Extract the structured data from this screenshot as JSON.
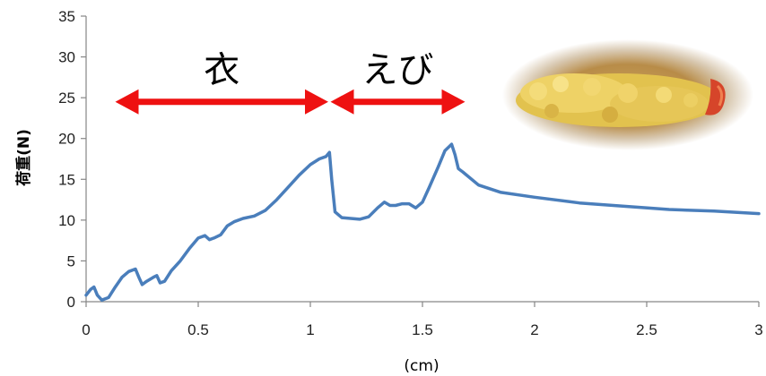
{
  "chart_data": {
    "type": "line",
    "title": "",
    "xlabel": "(cm)",
    "ylabel": "荷重(N)",
    "xlim": [
      0,
      3
    ],
    "ylim": [
      0,
      35
    ],
    "x_ticks": [
      "0",
      "0.5",
      "1",
      "1.5",
      "2",
      "2.5",
      "3"
    ],
    "y_ticks": [
      "0",
      "5",
      "10",
      "15",
      "20",
      "25",
      "30",
      "35"
    ],
    "grid": false,
    "legend": "none",
    "series": [
      {
        "color": "#4a7ebb",
        "x": [
          0,
          0.02,
          0.035,
          0.05,
          0.07,
          0.1,
          0.13,
          0.16,
          0.19,
          0.22,
          0.235,
          0.25,
          0.27,
          0.3,
          0.315,
          0.33,
          0.35,
          0.38,
          0.42,
          0.46,
          0.5,
          0.53,
          0.55,
          0.57,
          0.6,
          0.63,
          0.66,
          0.7,
          0.75,
          0.8,
          0.85,
          0.9,
          0.95,
          1.0,
          1.04,
          1.07,
          1.085,
          1.095,
          1.11,
          1.14,
          1.18,
          1.22,
          1.26,
          1.3,
          1.33,
          1.355,
          1.38,
          1.41,
          1.44,
          1.47,
          1.5,
          1.53,
          1.57,
          1.6,
          1.63,
          1.645,
          1.66,
          1.68,
          1.75,
          1.85,
          2.0,
          2.2,
          2.4,
          2.6,
          2.8,
          3.0
        ],
        "y": [
          0.8,
          1.5,
          1.8,
          0.8,
          0.2,
          0.5,
          1.8,
          3.0,
          3.7,
          4.0,
          3.0,
          2.1,
          2.5,
          3.0,
          3.2,
          2.3,
          2.5,
          3.8,
          5.0,
          6.5,
          7.8,
          8.1,
          7.6,
          7.8,
          8.2,
          9.3,
          9.8,
          10.2,
          10.5,
          11.2,
          12.5,
          14.0,
          15.5,
          16.8,
          17.5,
          17.8,
          18.3,
          15.0,
          11.0,
          10.3,
          10.2,
          10.1,
          10.4,
          11.5,
          12.2,
          11.8,
          11.8,
          12.0,
          12.0,
          11.5,
          12.2,
          14.0,
          16.5,
          18.5,
          19.3,
          18.0,
          16.3,
          15.9,
          14.3,
          13.4,
          12.8,
          12.1,
          11.7,
          11.3,
          11.1,
          10.8
        ]
      }
    ],
    "annotations": [
      {
        "label": "衣",
        "from_x": 0.13,
        "to_x": 1.08,
        "y": 24.5
      },
      {
        "label": "えび",
        "from_x": 1.09,
        "to_x": 1.69,
        "y": 24.5
      }
    ],
    "arrow_color": "#ee1111"
  }
}
